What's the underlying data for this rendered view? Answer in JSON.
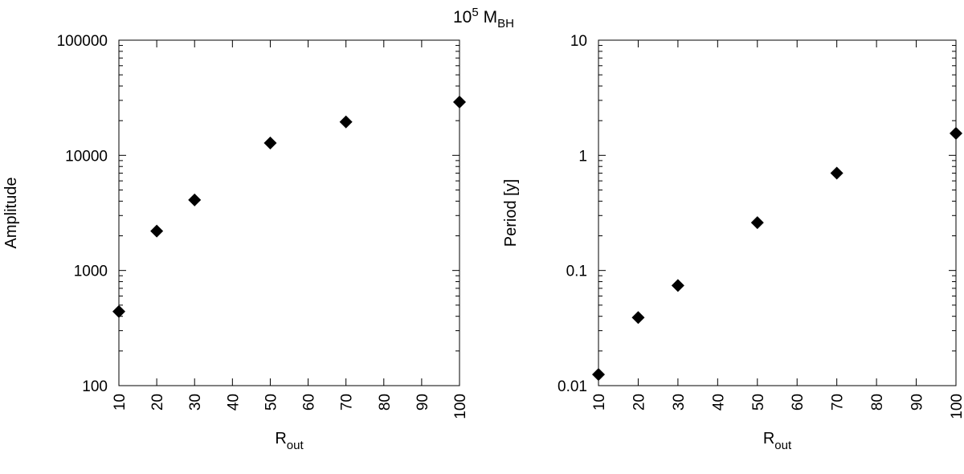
{
  "figure": {
    "title_base": "10",
    "title_exp": "5",
    "title_main": "M",
    "title_sub": "BH"
  },
  "chart_data": [
    {
      "type": "scatter",
      "title": "",
      "xlabel_main": "R",
      "xlabel_sub": "out",
      "ylabel": "Amplitude",
      "xscale": "linear",
      "yscale": "log",
      "xlim": [
        10,
        100
      ],
      "ylim": [
        100,
        100000
      ],
      "xticks": [
        10,
        20,
        30,
        40,
        50,
        60,
        70,
        80,
        90,
        100
      ],
      "xtick_labels": [
        "10",
        "20",
        "30",
        "40",
        "50",
        "60",
        "70",
        "80",
        "90",
        "100"
      ],
      "yticks": [
        100,
        1000,
        10000,
        100000
      ],
      "ytick_labels": [
        "100",
        "1000",
        "10000",
        "100000"
      ],
      "grid": false,
      "marker": "diamond",
      "marker_color": "#000000",
      "x": [
        10,
        20,
        30,
        50,
        70,
        100
      ],
      "y": [
        440,
        2200,
        4100,
        12800,
        19500,
        29000
      ]
    },
    {
      "type": "scatter",
      "title": "",
      "xlabel_main": "R",
      "xlabel_sub": "out",
      "ylabel": "Period [y]",
      "xscale": "linear",
      "yscale": "log",
      "xlim": [
        10,
        100
      ],
      "ylim": [
        0.01,
        10
      ],
      "xticks": [
        10,
        20,
        30,
        40,
        50,
        60,
        70,
        80,
        90,
        100
      ],
      "xtick_labels": [
        "10",
        "20",
        "30",
        "40",
        "50",
        "60",
        "70",
        "80",
        "90",
        "100"
      ],
      "yticks": [
        0.01,
        0.1,
        1,
        10
      ],
      "ytick_labels": [
        "0.01",
        "0.1",
        "1",
        "10"
      ],
      "grid": false,
      "marker": "diamond",
      "marker_color": "#000000",
      "x": [
        10,
        20,
        30,
        50,
        70,
        100
      ],
      "y": [
        0.0125,
        0.039,
        0.074,
        0.26,
        0.7,
        1.55
      ]
    }
  ]
}
